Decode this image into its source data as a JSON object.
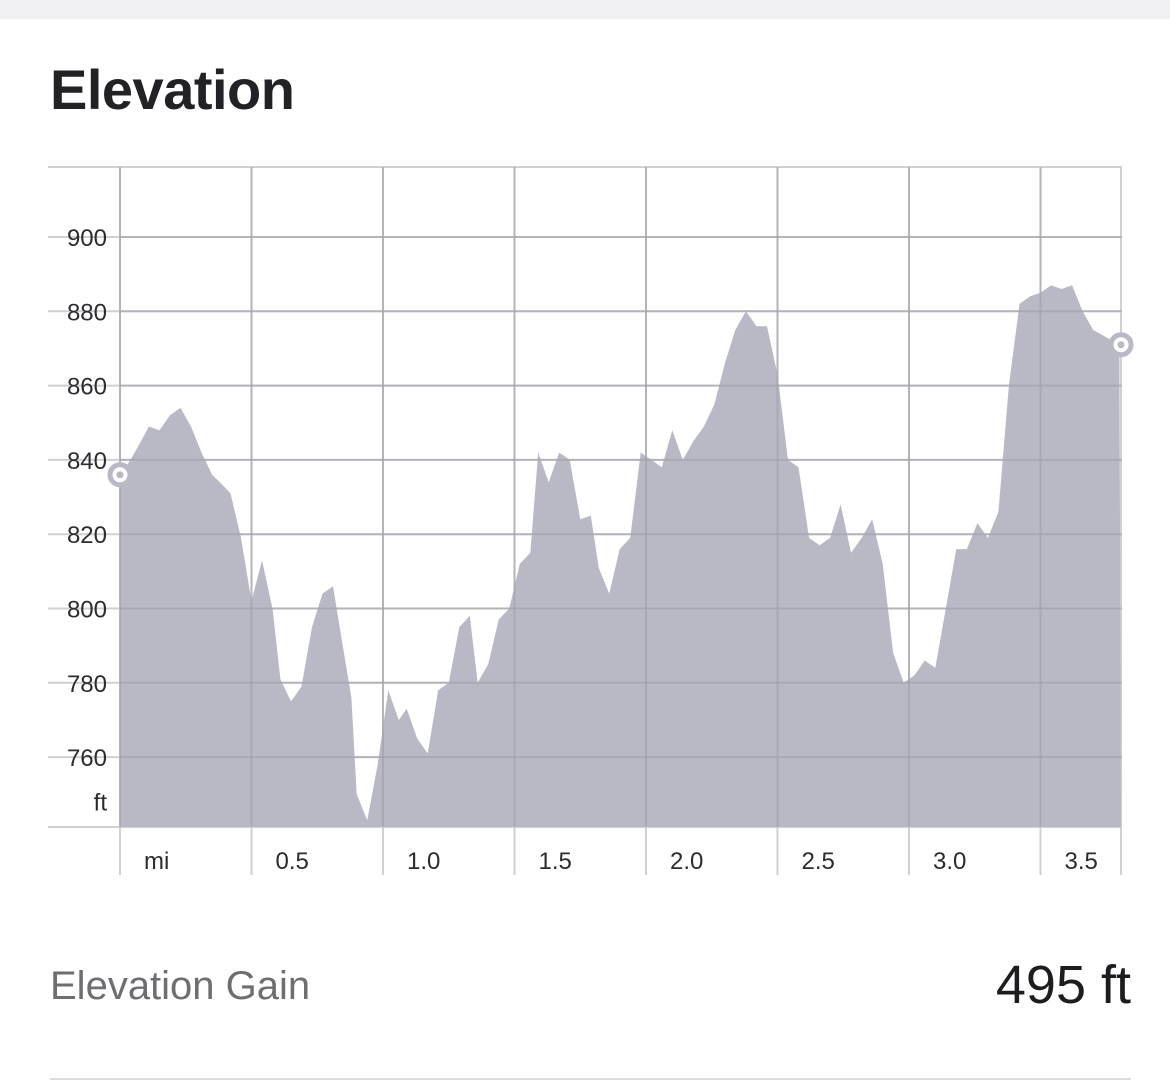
{
  "title": "Elevation",
  "stat": {
    "label": "Elevation Gain",
    "value": "495 ft"
  },
  "colors": {
    "area": "#b9b9c6",
    "grid": "#cfcfd4",
    "gridDark": "#9d9da6",
    "text": "#2b2b30"
  },
  "chart_data": {
    "type": "area",
    "xlabel": "mi",
    "ylabel": "ft",
    "xlim": [
      0,
      3.8
    ],
    "ylim": [
      739,
      917
    ],
    "x_ticks": [
      0.5,
      1.0,
      1.5,
      2.0,
      2.5,
      3.0,
      3.5
    ],
    "x_tick_labels": [
      "0.5",
      "1.0",
      "1.5",
      "2.0",
      "2.5",
      "3.0",
      "3.5"
    ],
    "y_ticks": [
      900,
      880,
      860,
      840,
      820,
      800,
      780,
      760
    ],
    "y_tick_labels": [
      "900",
      "880",
      "860",
      "840",
      "820",
      "800",
      "780",
      "760"
    ],
    "grid": true,
    "series": [
      {
        "x": [
          0.0,
          0.04,
          0.08,
          0.11,
          0.15,
          0.19,
          0.23,
          0.27,
          0.31,
          0.35,
          0.38,
          0.42,
          0.46,
          0.5,
          0.54,
          0.58,
          0.61,
          0.65,
          0.69,
          0.73,
          0.77,
          0.81,
          0.84,
          0.88,
          0.9,
          0.94,
          0.98,
          1.02,
          1.06,
          1.09,
          1.13,
          1.17,
          1.21,
          1.25,
          1.29,
          1.33,
          1.36,
          1.4,
          1.44,
          1.48,
          1.52,
          1.56,
          1.59,
          1.63,
          1.67,
          1.71,
          1.75,
          1.79,
          1.82,
          1.86,
          1.9,
          1.94,
          1.98,
          2.02,
          2.06,
          2.1,
          2.14,
          2.18,
          2.22,
          2.26,
          2.3,
          2.34,
          2.38,
          2.42,
          2.46,
          2.5,
          2.54,
          2.58,
          2.62,
          2.66,
          2.7,
          2.74,
          2.78,
          2.82,
          2.86,
          2.9,
          2.94,
          2.98,
          3.02,
          3.06,
          3.1,
          3.14,
          3.18,
          3.22,
          3.26,
          3.3,
          3.34,
          3.38,
          3.42,
          3.46,
          3.5,
          3.54,
          3.58,
          3.62,
          3.66,
          3.7,
          3.8
        ],
        "y": [
          836,
          840,
          845,
          849,
          848,
          852,
          854,
          849,
          842,
          836,
          834,
          831,
          819,
          802,
          813,
          800,
          781,
          775,
          779,
          795,
          804,
          806,
          793,
          776,
          750,
          743,
          758,
          778,
          770,
          773,
          765,
          761,
          778,
          780,
          795,
          798,
          780,
          785,
          797,
          800,
          812,
          815,
          842,
          834,
          842,
          840,
          824,
          825,
          811,
          804,
          816,
          819,
          842,
          840,
          838,
          848,
          840,
          845,
          849,
          855,
          866,
          875,
          880,
          876,
          876,
          863,
          840,
          838,
          819,
          817,
          819,
          828,
          815,
          819,
          824,
          812,
          788,
          780,
          782,
          786,
          784,
          800,
          816,
          816,
          823,
          819,
          826,
          860,
          882,
          884,
          885,
          887,
          886,
          887,
          880,
          875,
          871
        ]
      }
    ]
  }
}
